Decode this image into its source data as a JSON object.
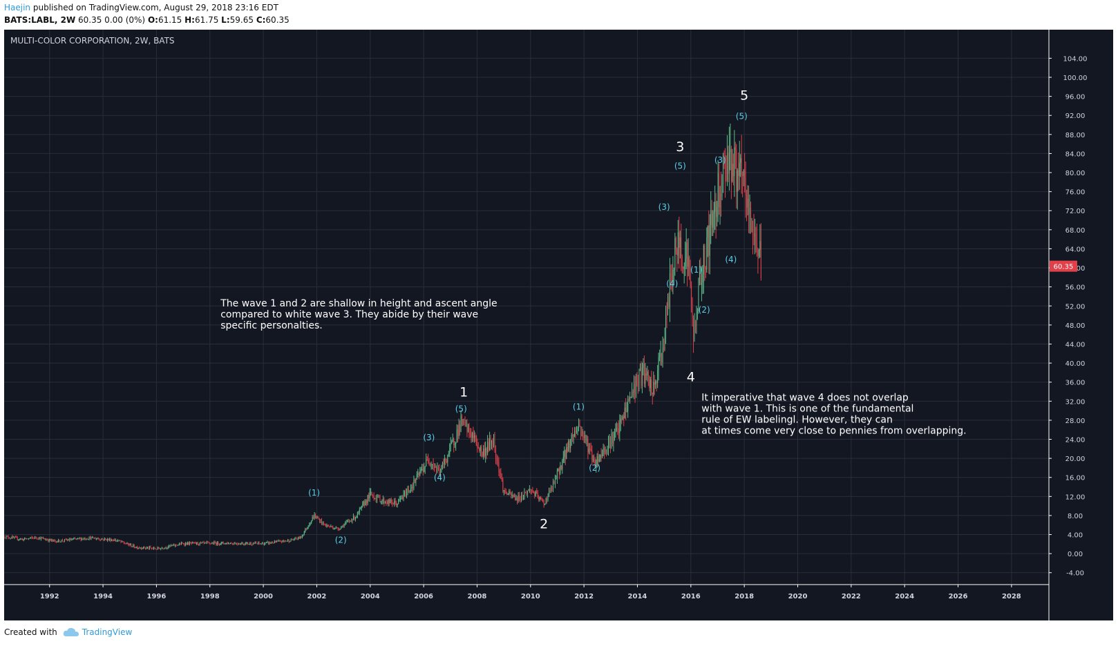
{
  "header": {
    "author": "Haejin",
    "published": "published on TradingView.com, August 29, 2018 23:16 EDT",
    "symbol": "BATS:LABL, 2W",
    "quote": "60.35 0.00 (0%)",
    "o_label": "O:",
    "o_value": "61.15",
    "h_label": "H:",
    "h_value": "61.75",
    "l_label": "L:",
    "l_value": "59.65",
    "c_label": "C:",
    "c_value": "60.35"
  },
  "footer": {
    "created_with": "Created with",
    "brand": "TradingView"
  },
  "colors": {
    "background": "#131722",
    "grid": "#2a2e39",
    "up": "#5dbb8a",
    "down": "#e0404a",
    "wave_label": "#5ad0e8",
    "annotation": "#ffffff",
    "axis_text": "#d1d4dc",
    "price_tag": "#e0404a"
  },
  "chart_data": {
    "type": "candlestick",
    "title": "MULTI-COLOR CORPORATION, 2W, BATS",
    "last_price": 60.35,
    "last_price_label": "60.35",
    "xlim": [
      1990.3,
      2029.4
    ],
    "ylim": [
      -6.5,
      110
    ],
    "yticks": [
      "104.00",
      "100.00",
      "96.00",
      "92.00",
      "88.00",
      "84.00",
      "80.00",
      "76.00",
      "72.00",
      "68.00",
      "64.00",
      "60.00",
      "56.00",
      "52.00",
      "48.00",
      "44.00",
      "40.00",
      "36.00",
      "32.00",
      "28.00",
      "24.00",
      "20.00",
      "16.00",
      "12.00",
      "8.00",
      "4.00",
      "0.00",
      "-4.00"
    ],
    "ytick_values": [
      104,
      100,
      96,
      92,
      88,
      84,
      80,
      76,
      72,
      68,
      64,
      60,
      56,
      52,
      48,
      44,
      40,
      36,
      32,
      28,
      24,
      20,
      16,
      12,
      8,
      4,
      0,
      -4
    ],
    "xticks": [
      "1992",
      "1994",
      "1996",
      "1998",
      "2000",
      "2002",
      "2004",
      "2006",
      "2008",
      "2010",
      "2012",
      "2014",
      "2016",
      "2018",
      "2020",
      "2022",
      "2024",
      "2026",
      "2028"
    ],
    "xtick_values": [
      1992,
      1994,
      1996,
      1998,
      2000,
      2002,
      2004,
      2006,
      2008,
      2010,
      2012,
      2014,
      2016,
      2018,
      2020,
      2022,
      2024,
      2026,
      2028
    ],
    "price_path": [
      [
        1990.3,
        3.6
      ],
      [
        1991.0,
        3.0
      ],
      [
        1991.5,
        3.4
      ],
      [
        1992.2,
        2.6
      ],
      [
        1993.5,
        3.3
      ],
      [
        1994.5,
        2.8
      ],
      [
        1995.2,
        1.4
      ],
      [
        1996.0,
        1.0
      ],
      [
        1997.0,
        2.1
      ],
      [
        1998.5,
        2.2
      ],
      [
        2000.0,
        2.1
      ],
      [
        2001.0,
        2.8
      ],
      [
        2001.4,
        3.4
      ],
      [
        2001.9,
        8.0
      ],
      [
        2002.3,
        6.0
      ],
      [
        2002.8,
        5.2
      ],
      [
        2003.5,
        8.0
      ],
      [
        2004.0,
        12.5
      ],
      [
        2004.5,
        11.0
      ],
      [
        2005.0,
        10.5
      ],
      [
        2005.6,
        14.5
      ],
      [
        2006.2,
        20.0
      ],
      [
        2006.6,
        17.0
      ],
      [
        2007.0,
        22.0
      ],
      [
        2007.4,
        27.5
      ],
      [
        2007.8,
        25.0
      ],
      [
        2008.2,
        21.0
      ],
      [
        2008.6,
        24.0
      ],
      [
        2009.0,
        13.0
      ],
      [
        2009.5,
        11.5
      ],
      [
        2010.0,
        13.5
      ],
      [
        2010.5,
        10.5
      ],
      [
        2010.9,
        15.0
      ],
      [
        2011.5,
        24.0
      ],
      [
        2011.8,
        27.0
      ],
      [
        2012.2,
        22.0
      ],
      [
        2012.4,
        19.0
      ],
      [
        2012.9,
        23.0
      ],
      [
        2013.3,
        26.0
      ],
      [
        2013.8,
        34.0
      ],
      [
        2014.2,
        38.0
      ],
      [
        2014.6,
        34.0
      ],
      [
        2015.0,
        45.0
      ],
      [
        2015.3,
        60.0
      ],
      [
        2015.5,
        65.0
      ],
      [
        2015.9,
        62.0
      ],
      [
        2016.1,
        45.0
      ],
      [
        2016.3,
        56.0
      ],
      [
        2016.8,
        70.0
      ],
      [
        2017.0,
        76.0
      ],
      [
        2017.4,
        84.0
      ],
      [
        2017.7,
        80.0
      ],
      [
        2018.0,
        77.0
      ],
      [
        2018.2,
        70.0
      ],
      [
        2018.5,
        65.0
      ],
      [
        2018.65,
        60.35
      ]
    ],
    "major_waves": [
      {
        "label": "1",
        "x": 2007.5,
        "y": 33.0
      },
      {
        "label": "2",
        "x": 2010.5,
        "y": 5.3
      },
      {
        "label": "3",
        "x": 2015.6,
        "y": 84.5
      },
      {
        "label": "4",
        "x": 2016.0,
        "y": 36.2
      },
      {
        "label": "5",
        "x": 2018.0,
        "y": 95.3
      }
    ],
    "minor_waves": [
      {
        "label": "(1)",
        "x": 2001.9,
        "y": 12.2
      },
      {
        "label": "(2)",
        "x": 2002.9,
        "y": 2.3
      },
      {
        "label": "(3)",
        "x": 2006.2,
        "y": 23.8
      },
      {
        "label": "(4)",
        "x": 2006.6,
        "y": 15.4
      },
      {
        "label": "(5)",
        "x": 2007.4,
        "y": 29.8
      },
      {
        "label": "(1)",
        "x": 2011.8,
        "y": 30.2
      },
      {
        "label": "(2)",
        "x": 2012.4,
        "y": 17.4
      },
      {
        "label": "(3)",
        "x": 2015.0,
        "y": 72.2
      },
      {
        "label": "(4)",
        "x": 2015.3,
        "y": 56.1
      },
      {
        "label": "(5)",
        "x": 2015.6,
        "y": 80.8
      },
      {
        "label": "(1)",
        "x": 2016.2,
        "y": 59.0
      },
      {
        "label": "(2)",
        "x": 2016.5,
        "y": 50.6
      },
      {
        "label": "(3)",
        "x": 2017.1,
        "y": 82.0
      },
      {
        "label": "(4)",
        "x": 2017.5,
        "y": 61.2
      },
      {
        "label": "(5)",
        "x": 2017.9,
        "y": 91.2
      }
    ],
    "annotations": [
      {
        "x": 1998.4,
        "y": 51.9,
        "lines": [
          "The wave 1 and 2 are shallow in height and ascent angle",
          "compared to white wave 3. They abide by their wave",
          "specific personalties."
        ]
      },
      {
        "x": 2016.4,
        "y": 32.1,
        "lines": [
          "It imperative that wave 4 does not overlap",
          "with wave 1. This is one of the fundamental",
          "rule of EW labelingl. However, they can",
          "at times come very close to pennies from overlapping."
        ]
      }
    ]
  }
}
